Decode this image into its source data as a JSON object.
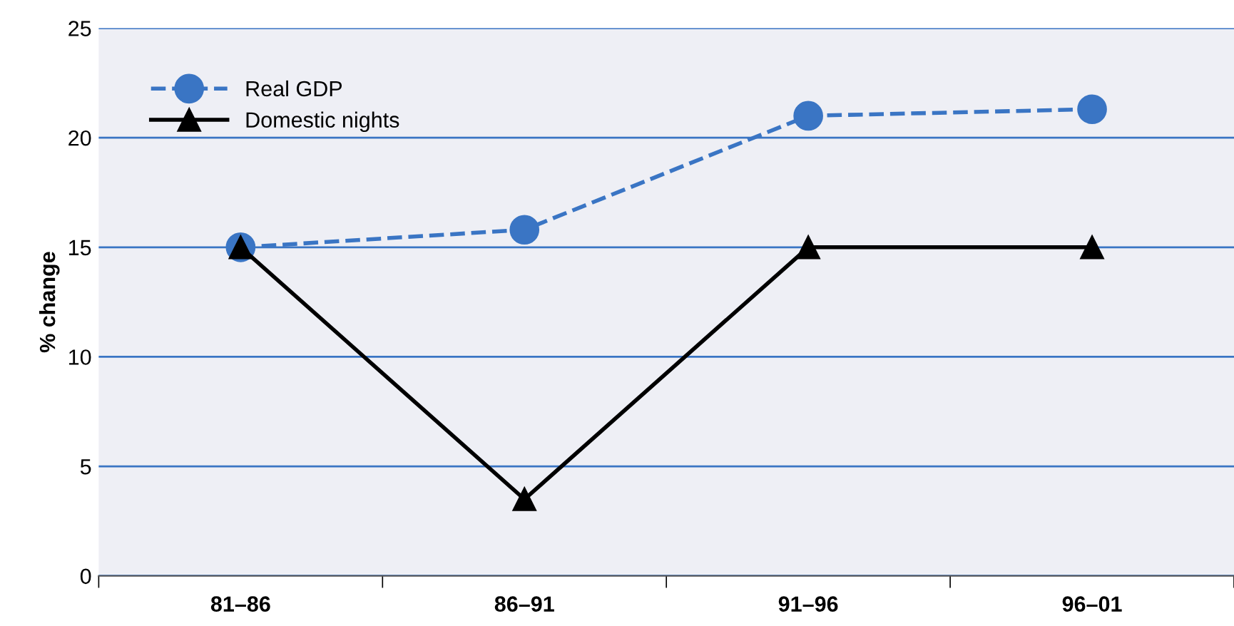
{
  "chart_data": {
    "type": "line",
    "ylabel": "% change",
    "categories": [
      "81–86",
      "86–91",
      "91–96",
      "96–01"
    ],
    "series": [
      {
        "name": "Real GDP",
        "color": "#3a75c4",
        "values": [
          15,
          15.8,
          21,
          21.3
        ],
        "marker": "circle",
        "line_style": "dashed"
      },
      {
        "name": "Domestic nights",
        "color": "#000000",
        "values": [
          15,
          3.5,
          15,
          15
        ],
        "marker": "triangle",
        "line_style": "solid"
      }
    ],
    "ylim": [
      0,
      25
    ],
    "yticks": [
      0,
      5,
      10,
      15,
      20,
      25
    ],
    "grid": "y",
    "legend": "top left"
  }
}
